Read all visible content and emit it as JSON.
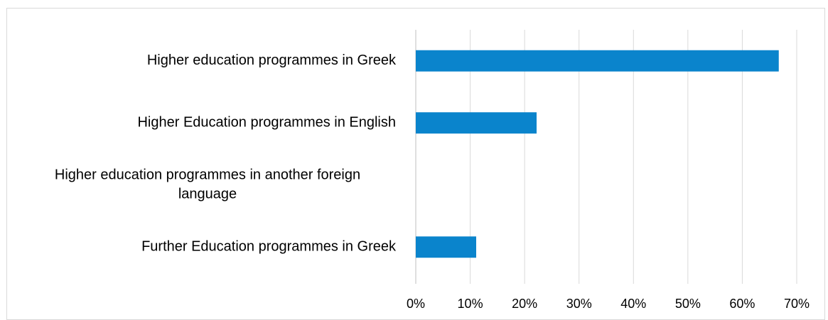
{
  "chart_data": {
    "type": "bar",
    "orientation": "horizontal",
    "title": "",
    "xlabel": "",
    "ylabel": "",
    "categories": [
      "Higher education programmes in Greek",
      "Higher Education programmes in English",
      "Higher education programmes in another foreign language",
      "Further Education programmes in Greek"
    ],
    "category_label_lines": [
      [
        "Higher education programmes in Greek"
      ],
      [
        "Higher Education programmes in English"
      ],
      [
        "Higher education programmes in another foreign",
        "language"
      ],
      [
        "Further Education programmes in Greek"
      ]
    ],
    "values": [
      0.667,
      0.222,
      0,
      0.111
    ],
    "xlim": [
      0,
      0.7
    ],
    "ticks": [
      0,
      0.1,
      0.2,
      0.3,
      0.4,
      0.5,
      0.6,
      0.7
    ],
    "tick_labels": [
      "0%",
      "10%",
      "20%",
      "30%",
      "40%",
      "50%",
      "60%",
      "70%"
    ],
    "grid": true,
    "legend": "none",
    "colors": {
      "bar": "#0a84cc",
      "grid": "#d9d9d9",
      "text": "#000000",
      "frame": "#d9d9d9"
    }
  }
}
